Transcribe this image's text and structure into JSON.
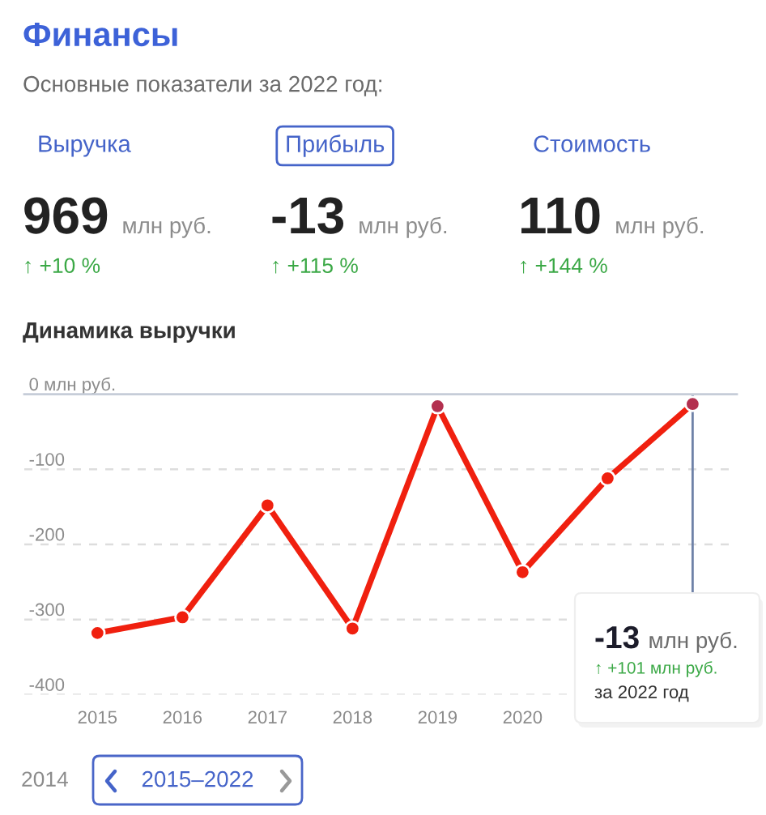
{
  "chart_data": [
    {
      "type": "other",
      "title": "Финансы",
      "subtitle": "Основные показатели за 2022 год:",
      "categories": [
        "Выручка",
        "Прибыль",
        "Стоимость"
      ],
      "values": [
        969,
        -13,
        110
      ],
      "data_labels": true,
      "annotations": [
        "млн руб.",
        "млн руб.",
        "млн руб.",
        "↑ +10 %",
        "↑ +115 %",
        "↑ +144 %"
      ]
    },
    {
      "type": "line",
      "title": "Динамика выручки",
      "x": [
        2015,
        2016,
        2017,
        2018,
        2019,
        2020,
        2021,
        2022
      ],
      "series": [
        {
          "color": "#f0200f",
          "colors": [
            "#f0200f",
            "#f0200f",
            "#f0200f",
            "#f0200f",
            "#b3304f",
            "#f0200f",
            "#f0200f",
            "#b3304f"
          ],
          "values": [
            -318,
            -297,
            -148,
            -312,
            -16,
            -237,
            -112,
            -13
          ]
        }
      ],
      "xlim": [
        2014.14,
        2022.52
      ],
      "xticks": [
        2015,
        2016,
        2017,
        2018,
        2019,
        2020
      ],
      "ylim": [
        -400,
        0
      ],
      "yticks": [
        {
          "value": 0,
          "label": "0 млн руб."
        },
        -100,
        -200,
        -300,
        -400
      ],
      "grid": "y",
      "marker": "circle",
      "line_style": "solid",
      "ref_lines": [
        {
          "axis": "x",
          "value": 2022,
          "color": "#6f82a8"
        }
      ],
      "annotations": [
        "-13 млн руб.",
        "↑ +101 млн руб.",
        "за 2022 год",
        "2014",
        "2015–2022"
      ]
    }
  ]
}
